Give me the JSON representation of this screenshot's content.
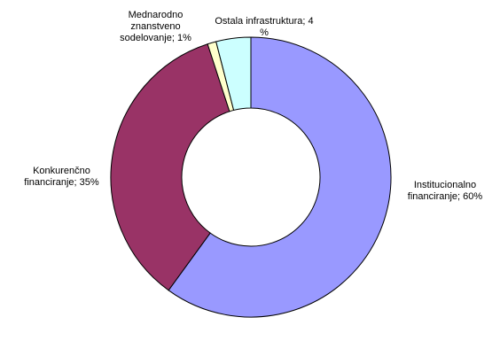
{
  "chart_data": {
    "type": "donut",
    "labels": [
      "Institucionalno financiranje; 60%",
      "Konkurenčno financiranje; 35%",
      "Mednarodno znanstveno sodelovanje; 1%",
      "Ostala infrastruktura; 4 %"
    ],
    "values": [
      60,
      35,
      1,
      4
    ],
    "colors": [
      "#9999ff",
      "#993366",
      "#ffffcc",
      "#ccffff"
    ]
  }
}
